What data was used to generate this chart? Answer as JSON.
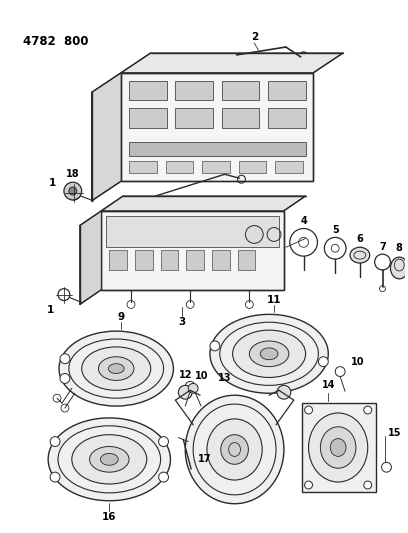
{
  "title": "4782  800",
  "background_color": "#ffffff",
  "line_color": "#2a2a2a",
  "text_color": "#000000",
  "fig_width": 4.08,
  "fig_height": 5.33,
  "dpi": 100
}
